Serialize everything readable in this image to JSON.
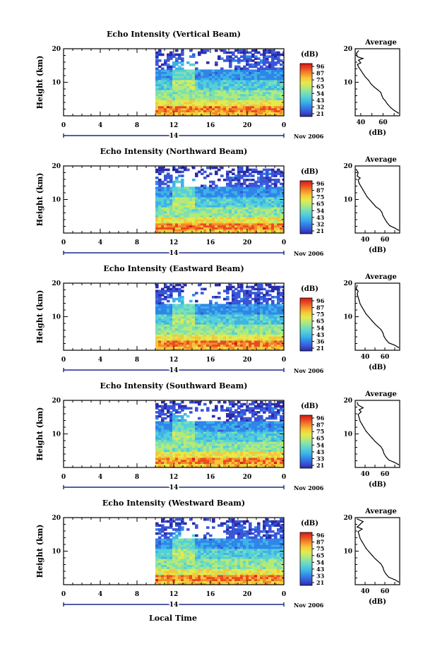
{
  "figure": {
    "x_axis_label": "Local Time",
    "date_label": "Nov 2006",
    "day_label": "14"
  },
  "colors": {
    "colormap": [
      "#2b2ba8",
      "#3a55d8",
      "#2f86e8",
      "#3fb2e8",
      "#55d0d8",
      "#7fe0b0",
      "#b4ea78",
      "#e6ea4a",
      "#f6c63a",
      "#f48a2a",
      "#ea4a22",
      "#d21818"
    ]
  },
  "chart_data": [
    {
      "type": "heatmap",
      "title": "Echo Intensity (Vertical Beam)",
      "xlabel": "",
      "ylabel": "Height (km)",
      "xlim": [
        0,
        24
      ],
      "ylim": [
        0,
        20
      ],
      "xticks": [
        "0",
        "4",
        "8",
        "12",
        "16",
        "20",
        "0"
      ],
      "yticks": [
        "10",
        "20"
      ],
      "data_start_hour": 10,
      "colorbar": {
        "label": "(dB)",
        "ticks": [
          "96",
          "87",
          "75",
          "65",
          "54",
          "43",
          "32",
          "21"
        ],
        "range": [
          21,
          96
        ]
      },
      "profile": {
        "title": "Average",
        "xlabel": "(dB)",
        "xticks": [
          "40",
          "60"
        ],
        "xlim": [
          35,
          75
        ],
        "ylim": [
          0,
          20
        ],
        "yticks": [
          "10",
          "20"
        ],
        "points": [
          [
            74,
            0.8
          ],
          [
            70,
            1.6
          ],
          [
            67,
            2.4
          ],
          [
            64,
            3.5
          ],
          [
            62,
            4.5
          ],
          [
            60,
            5.2
          ],
          [
            59,
            6.0
          ],
          [
            58,
            7.0
          ],
          [
            55,
            7.8
          ],
          [
            52,
            8.6
          ],
          [
            49,
            9.6
          ],
          [
            47,
            10.6
          ],
          [
            44,
            11.6
          ],
          [
            42,
            12.6
          ],
          [
            40,
            13.6
          ],
          [
            38,
            14.6
          ],
          [
            37,
            15.3
          ],
          [
            40,
            15.8
          ],
          [
            38,
            16.6
          ],
          [
            42,
            17.1
          ],
          [
            37,
            17.6
          ],
          [
            36,
            18.6
          ],
          [
            38,
            19.4
          ]
        ]
      }
    },
    {
      "type": "heatmap",
      "title": "Echo Intensity (Northward Beam)",
      "xlabel": "",
      "ylabel": "Height (km)",
      "xlim": [
        0,
        24
      ],
      "ylim": [
        0,
        20
      ],
      "xticks": [
        "0",
        "4",
        "8",
        "12",
        "16",
        "20",
        "0"
      ],
      "yticks": [
        "10",
        "20"
      ],
      "data_start_hour": 10,
      "colorbar": {
        "label": "(dB)",
        "ticks": [
          "96",
          "87",
          "75",
          "65",
          "54",
          "43",
          "32",
          "21"
        ],
        "range": [
          21,
          96
        ]
      },
      "profile": {
        "title": "Average",
        "xlabel": "(dB)",
        "xticks": [
          "40",
          "60"
        ],
        "xlim": [
          30,
          75
        ],
        "ylim": [
          0,
          20
        ],
        "yticks": [
          "10",
          "20"
        ],
        "points": [
          [
            74,
            0.8
          ],
          [
            70,
            1.5
          ],
          [
            65,
            2.2
          ],
          [
            62,
            3.2
          ],
          [
            60,
            4.2
          ],
          [
            58,
            5.2
          ],
          [
            57,
            6.2
          ],
          [
            55,
            7.0
          ],
          [
            51,
            7.8
          ],
          [
            48,
            8.8
          ],
          [
            45,
            9.8
          ],
          [
            42,
            10.8
          ],
          [
            40,
            11.8
          ],
          [
            38,
            12.8
          ],
          [
            36,
            13.8
          ],
          [
            34,
            14.8
          ],
          [
            33,
            15.8
          ],
          [
            35,
            16.4
          ],
          [
            32,
            17.0
          ],
          [
            33,
            18.0
          ],
          [
            31,
            19.0
          ]
        ]
      }
    },
    {
      "type": "heatmap",
      "title": "Echo Intensity (Eastward Beam)",
      "xlabel": "",
      "ylabel": "Height (km)",
      "xlim": [
        0,
        24
      ],
      "ylim": [
        0,
        20
      ],
      "xticks": [
        "0",
        "4",
        "8",
        "12",
        "16",
        "20",
        "0"
      ],
      "yticks": [
        "10",
        "20"
      ],
      "data_start_hour": 10,
      "colorbar": {
        "label": "(dB)",
        "ticks": [
          "96",
          "87",
          "75",
          "65",
          "54",
          "43",
          "36",
          "21"
        ],
        "range": [
          21,
          96
        ]
      },
      "profile": {
        "title": "Average",
        "xlabel": "(dB)",
        "xticks": [
          "40",
          "60"
        ],
        "xlim": [
          30,
          75
        ],
        "ylim": [
          0,
          20
        ],
        "yticks": [
          "10",
          "20"
        ],
        "points": [
          [
            74,
            0.8
          ],
          [
            70,
            1.5
          ],
          [
            64,
            2.2
          ],
          [
            61,
            3.2
          ],
          [
            59,
            4.2
          ],
          [
            58,
            5.2
          ],
          [
            56,
            6.2
          ],
          [
            53,
            7.0
          ],
          [
            50,
            7.8
          ],
          [
            47,
            8.8
          ],
          [
            44,
            9.8
          ],
          [
            41,
            10.8
          ],
          [
            39,
            11.8
          ],
          [
            37,
            12.8
          ],
          [
            35,
            13.8
          ],
          [
            34,
            14.8
          ],
          [
            33,
            15.8
          ],
          [
            32,
            16.8
          ],
          [
            33,
            17.6
          ],
          [
            31,
            18.4
          ],
          [
            32,
            19.4
          ]
        ]
      }
    },
    {
      "type": "heatmap",
      "title": "Echo Intensity (Southward Beam)",
      "xlabel": "",
      "ylabel": "Height (km)",
      "xlim": [
        0,
        24
      ],
      "ylim": [
        0,
        20
      ],
      "xticks": [
        "0",
        "4",
        "8",
        "12",
        "16",
        "20",
        "0"
      ],
      "yticks": [
        "10",
        "20"
      ],
      "data_start_hour": 10,
      "colorbar": {
        "label": "(dB)",
        "ticks": [
          "96",
          "87",
          "75",
          "65",
          "54",
          "43",
          "33",
          "21"
        ],
        "range": [
          21,
          96
        ]
      },
      "profile": {
        "title": "Average",
        "xlabel": "(dB)",
        "xticks": [
          "40",
          "60"
        ],
        "xlim": [
          30,
          75
        ],
        "ylim": [
          0,
          20
        ],
        "yticks": [
          "10",
          "20"
        ],
        "points": [
          [
            74,
            0.8
          ],
          [
            70,
            1.5
          ],
          [
            64,
            2.2
          ],
          [
            61,
            3.2
          ],
          [
            59,
            4.2
          ],
          [
            58,
            5.2
          ],
          [
            56,
            6.2
          ],
          [
            53,
            7.0
          ],
          [
            50,
            7.8
          ],
          [
            47,
            8.8
          ],
          [
            44,
            9.8
          ],
          [
            41,
            10.8
          ],
          [
            39,
            11.8
          ],
          [
            37,
            12.8
          ],
          [
            35,
            13.8
          ],
          [
            34,
            14.8
          ],
          [
            33,
            15.8
          ],
          [
            36,
            16.6
          ],
          [
            34,
            17.2
          ],
          [
            38,
            17.8
          ],
          [
            33,
            18.6
          ],
          [
            32,
            19.4
          ]
        ]
      }
    },
    {
      "type": "heatmap",
      "title": "Echo Intensity (Westward Beam)",
      "xlabel": "",
      "ylabel": "Height (km)",
      "xlim": [
        0,
        24
      ],
      "ylim": [
        0,
        20
      ],
      "xticks": [
        "0",
        "4",
        "8",
        "12",
        "16",
        "20",
        "0"
      ],
      "yticks": [
        "10",
        "20"
      ],
      "data_start_hour": 10,
      "colorbar": {
        "label": "(dB)",
        "ticks": [
          "96",
          "87",
          "75",
          "65",
          "54",
          "43",
          "33",
          "21"
        ],
        "range": [
          21,
          96
        ]
      },
      "profile": {
        "title": "Average",
        "xlabel": "(dB)",
        "xticks": [
          "40",
          "60"
        ],
        "xlim": [
          30,
          75
        ],
        "ylim": [
          0,
          20
        ],
        "yticks": [
          "10",
          "20"
        ],
        "points": [
          [
            74,
            0.8
          ],
          [
            70,
            1.5
          ],
          [
            64,
            2.2
          ],
          [
            61,
            3.2
          ],
          [
            59,
            4.2
          ],
          [
            58,
            5.2
          ],
          [
            56,
            6.2
          ],
          [
            53,
            7.0
          ],
          [
            50,
            7.8
          ],
          [
            47,
            8.8
          ],
          [
            44,
            9.8
          ],
          [
            41,
            10.8
          ],
          [
            39,
            11.8
          ],
          [
            37,
            12.8
          ],
          [
            35,
            13.8
          ],
          [
            34,
            14.8
          ],
          [
            33,
            15.8
          ],
          [
            37,
            16.6
          ],
          [
            32,
            17.2
          ],
          [
            35,
            18.0
          ],
          [
            38,
            18.8
          ],
          [
            32,
            19.6
          ]
        ]
      }
    }
  ]
}
